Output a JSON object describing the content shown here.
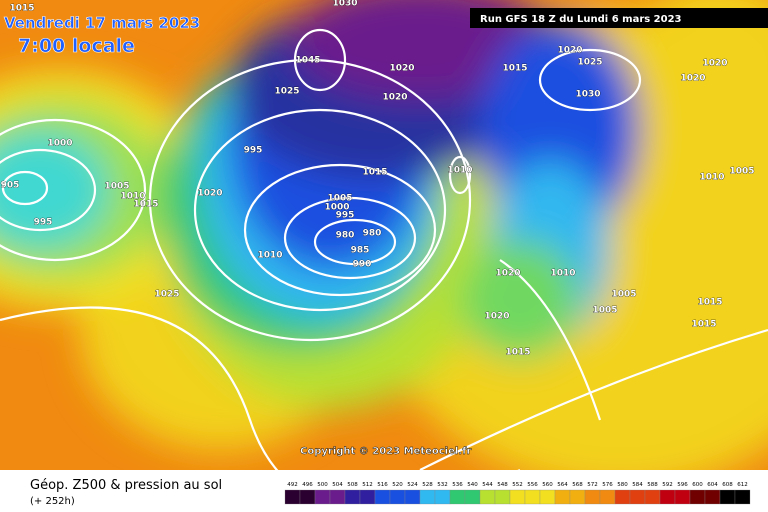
{
  "header": {
    "valid_time": "Vendredi 17 mars 2023",
    "local_time": "7:00 locale",
    "run": "Run GFS 18 Z du Lundi 6 mars 2023"
  },
  "copyright": "Copyright © 2023 Meteociel.fr",
  "footer": {
    "title": "Géop. Z500 & pression au sol",
    "lead": "(+ 252h)"
  },
  "legend_ticks": [
    492,
    496,
    500,
    504,
    508,
    512,
    516,
    520,
    524,
    528,
    532,
    536,
    540,
    544,
    548,
    552,
    556,
    560,
    564,
    568,
    572,
    576,
    580,
    584,
    588,
    592,
    596,
    600,
    604,
    608,
    612
  ],
  "isobar_labels": [
    1015,
    1030,
    1020,
    1025,
    1015,
    1020,
    1020,
    1030,
    1020,
    1020,
    1045,
    1025,
    1000,
    1005,
    1010,
    1015,
    995,
    1020,
    995,
    1015,
    1010,
    1010,
    1005,
    1005,
    1000,
    995,
    980,
    980,
    985,
    990,
    1010,
    1025,
    1020,
    1010,
    1005,
    1005,
    1015,
    1015,
    1020,
    1015,
    905
  ]
}
